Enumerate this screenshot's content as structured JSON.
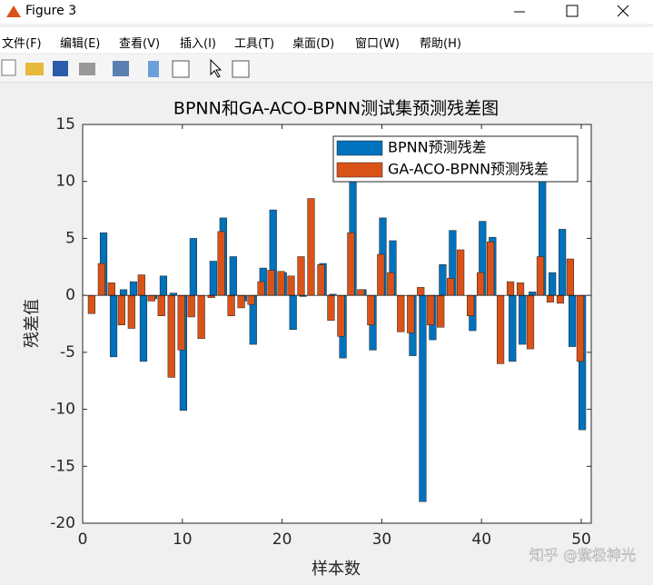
{
  "window": {
    "title": "Figure 3",
    "menu": [
      "文件(F)",
      "编辑(E)",
      "查看(V)",
      "插入(I)",
      "工具(T)",
      "桌面(D)",
      "窗口(W)",
      "帮助(H)"
    ]
  },
  "chart_data": {
    "type": "bar",
    "title": "BPNN和GA-ACO-BPNN测试集预测残差图",
    "xlabel": "样本数",
    "ylabel": "残差值",
    "x": [
      1,
      2,
      3,
      4,
      5,
      6,
      7,
      8,
      9,
      10,
      11,
      12,
      13,
      14,
      15,
      16,
      17,
      18,
      19,
      20,
      21,
      22,
      23,
      24,
      25,
      26,
      27,
      28,
      29,
      30,
      31,
      32,
      33,
      34,
      35,
      36,
      37,
      38,
      39,
      40,
      41,
      42,
      43,
      44,
      45,
      46,
      47,
      48,
      49,
      50
    ],
    "series": [
      {
        "name": "BPNN预测残差",
        "color": "#0072bd",
        "values": [
          0,
          5.5,
          -5.4,
          0.5,
          1.2,
          -5.8,
          -0.3,
          1.7,
          0.2,
          -10.1,
          5.0,
          0,
          3.0,
          6.8,
          3.4,
          -0.5,
          -4.3,
          2.4,
          7.5,
          2.0,
          -3.0,
          -0.1,
          0,
          2.8,
          0.1,
          -5.5,
          10,
          0.5,
          -4.8,
          6.8,
          4.8,
          0,
          -5.3,
          -18.1,
          -3.9,
          2.7,
          5.7,
          0,
          -3.1,
          6.5,
          5.1,
          0,
          -5.8,
          -4.3,
          0.3,
          10,
          2.0,
          5.8,
          -4.5,
          -11.8
        ]
      },
      {
        "name": "GA-ACO-BPNN预测残差",
        "color": "#d95319",
        "values": [
          -1.6,
          2.8,
          1.1,
          -2.6,
          -2.9,
          1.8,
          -0.5,
          -1.8,
          -7.2,
          -4.8,
          -1.9,
          -3.8,
          -0.2,
          5.6,
          -1.8,
          -1.1,
          -0.8,
          1.2,
          2.2,
          2.1,
          1.7,
          3.4,
          8.5,
          2.7,
          -2.2,
          -3.6,
          5.5,
          0.5,
          -2.6,
          3.6,
          2.0,
          -3.2,
          -3.3,
          0.7,
          -2.6,
          -2.8,
          1.5,
          4.0,
          -1.8,
          2.0,
          4.7,
          -6.0,
          1.2,
          1.1,
          -4.7,
          3.4,
          -0.6,
          -0.7,
          3.2,
          -5.8
        ]
      }
    ],
    "xlim": [
      0,
      51
    ],
    "ylim": [
      -20,
      15
    ],
    "xticks": [
      0,
      10,
      20,
      30,
      40,
      50
    ],
    "yticks": [
      -20,
      -15,
      -10,
      -5,
      0,
      5,
      10,
      15
    ],
    "legend": "upper right"
  },
  "watermark": "知乎 @紫极神光"
}
